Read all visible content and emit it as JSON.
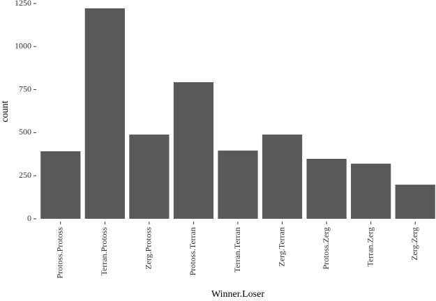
{
  "chart_data": {
    "type": "bar",
    "x_label": "Winner.Loser",
    "y_label": "count",
    "categories": [
      "Protoss.Protoss",
      "Terran.Protoss",
      "Zerg.Protoss",
      "Protoss.Terran",
      "Terran.Terran",
      "Zerg.Terran",
      "Protoss.Zerg",
      "Terran.Zerg",
      "Zerg.Zerg"
    ],
    "values": [
      392,
      1222,
      489,
      793,
      396,
      489,
      348,
      320,
      198
    ],
    "color": "#595959",
    "ylim": [
      0,
      1250
    ],
    "yticks": [
      0,
      250,
      500,
      750,
      1000,
      1250
    ],
    "grid": false
  }
}
